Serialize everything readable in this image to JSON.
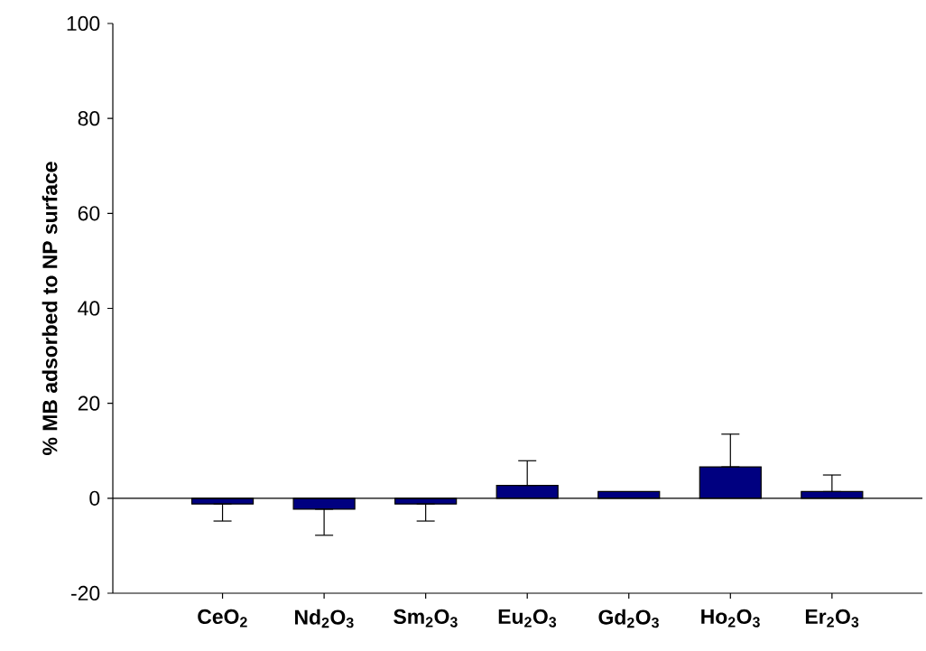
{
  "chart_data": {
    "type": "bar",
    "ylabel": "% MB adsorbed to NP surface",
    "categories": [
      "CeO$_{2}$",
      "Nd$_{2}$O$_{3}$",
      "Sm$_{2}$O$_{3}$",
      "Eu$_{2}$O$_{3}$",
      "Gd$_{2}$O$_{3}$",
      "Ho$_{2}$O$_{3}$",
      "Er$_{2}$O$_{3}$"
    ],
    "values": [
      -1.2,
      -2.3,
      -1.2,
      2.7,
      1.4,
      6.6,
      1.4
    ],
    "errors": [
      [
        -4.8,
        -1.2
      ],
      [
        -7.8,
        -2.3
      ],
      [
        -4.8,
        -1.2
      ],
      [
        2.7,
        7.9
      ],
      null,
      [
        6.6,
        13.5
      ],
      [
        1.4,
        4.9
      ]
    ],
    "color": "#000080",
    "ylim": [
      -20,
      100
    ],
    "yticks": [
      -20,
      0,
      20,
      40,
      60,
      80,
      100
    ],
    "ref_lines": [
      {
        "axis": "y",
        "value": 0
      }
    ],
    "grid": false
  }
}
